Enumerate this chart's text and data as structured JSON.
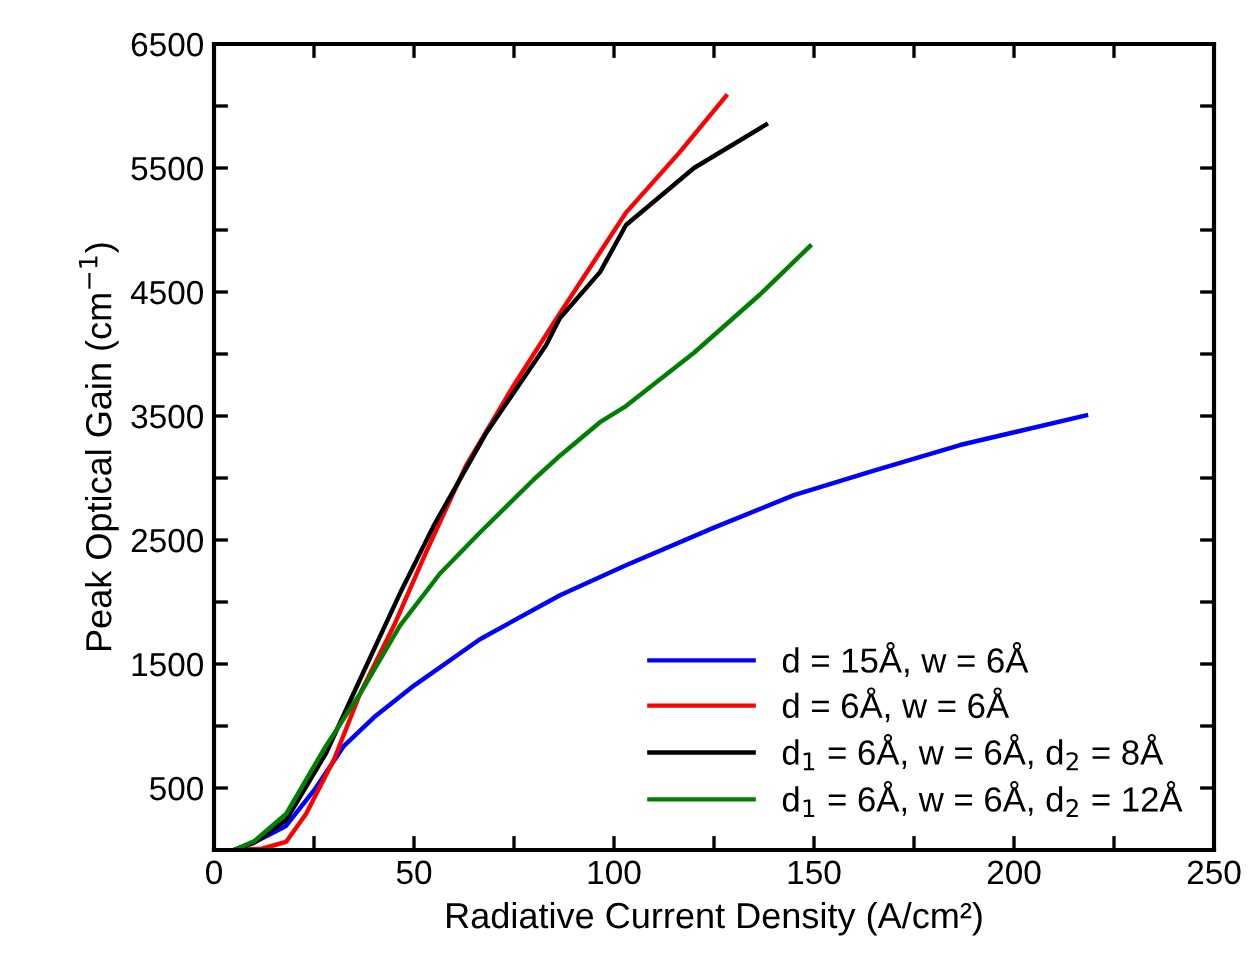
{
  "chart_data": {
    "type": "line",
    "xlabel": "Radiative Current Density (A/cm²)",
    "ylabel": "Peak Optical Gain (cm$^{−1}$)",
    "xlim": [
      0,
      250
    ],
    "ylim": [
      0,
      6500
    ],
    "xticks": [
      0,
      {
        "value": 25,
        "label": null
      },
      50,
      {
        "value": 75,
        "label": null
      },
      100,
      {
        "value": 125,
        "label": null
      },
      150,
      {
        "value": 175,
        "label": null
      },
      200,
      {
        "value": 225,
        "label": null
      },
      250
    ],
    "yticks": [
      {
        "value": 0,
        "label": null
      },
      500,
      {
        "value": 1000,
        "label": null
      },
      1500,
      {
        "value": 2000,
        "label": null
      },
      2500,
      {
        "value": 3000,
        "label": null
      },
      3500,
      {
        "value": 4000,
        "label": null
      },
      4500,
      {
        "value": 5000,
        "label": null
      },
      5500,
      {
        "value": 6000,
        "label": null
      },
      6500
    ],
    "grid": false,
    "legend": "bottom right",
    "line_style": "solid",
    "marker": "none",
    "series": [
      {
        "name": "d = 15Å, w = 6Å",
        "color": "#0000ff",
        "x": [
          5,
          10,
          18,
          25,
          32.5,
          40,
          50,
          66.5,
          86.5,
          103,
          125,
          145,
          165,
          186.5,
          218
        ],
        "values": [
          0,
          60,
          194,
          480,
          840,
          1070,
          1326,
          1700,
          2054,
          2296,
          2600,
          2862,
          3060,
          3266,
          3505
        ]
      },
      {
        "name": "d = 6Å, w = 6Å",
        "color": "#ff0000",
        "x": [
          5,
          12,
          18,
          23,
          30,
          36.5,
          45,
          53,
          63,
          75,
          86.5,
          96.5,
          103,
          116.5,
          128
        ],
        "values": [
          0,
          10,
          65,
          290,
          730,
          1260,
          1810,
          2400,
          3100,
          3750,
          4330,
          4820,
          5140,
          5630,
          6080
        ]
      },
      {
        "name": "d$_{1}$ = 6Å, w = 6Å, d$_{2}$ = 8Å",
        "color": "#000000",
        "x": [
          5,
          10,
          18,
          28,
          36.5,
          46.5,
          55,
          68,
          83,
          86.5,
          96.5,
          103,
          120,
          138
        ],
        "values": [
          0,
          60,
          240,
          780,
          1375,
          2070,
          2620,
          3360,
          4070,
          4290,
          4660,
          5040,
          5500,
          5850
        ]
      },
      {
        "name": "d$_{1}$ = 6Å, w = 6Å, d$_{2}$ = 12Å",
        "color": "#008000",
        "x": [
          5,
          10,
          18,
          28,
          36.5,
          46.5,
          56.5,
          66.5,
          80,
          86.5,
          96.5,
          103,
          120,
          136.5,
          149
        ],
        "values": [
          0,
          70,
          290,
          840,
          1260,
          1810,
          2230,
          2560,
          2990,
          3180,
          3450,
          3580,
          4010,
          4480,
          4870
        ]
      }
    ]
  }
}
